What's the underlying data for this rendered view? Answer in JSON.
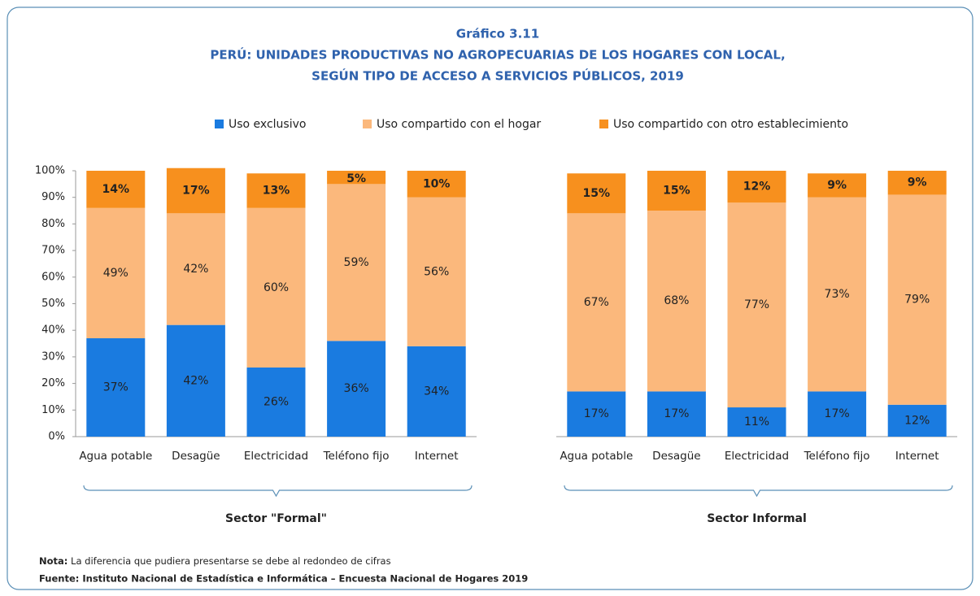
{
  "chart_data": {
    "type": "bar",
    "stacked": true,
    "kicker": "Gráfico 3.11",
    "title_lines": [
      "PERÚ: UNIDADES PRODUCTIVAS NO AGROPECUARIAS DE LOS HOGARES CON LOCAL,",
      "SEGÚN TIPO DE ACCESO A SERVICIOS PÚBLICOS, 2019"
    ],
    "categories": [
      "Agua potable",
      "Desagüe",
      "Electricidad",
      "Teléfono fijo",
      "Internet",
      "Agua potable",
      "Desagüe",
      "Electricidad",
      "Teléfono fijo",
      "Internet"
    ],
    "groups": [
      {
        "label": "Sector \"Formal\"",
        "size": 5
      },
      {
        "label": "Sector  Informal",
        "size": 5
      }
    ],
    "series": [
      {
        "name": "Uso exclusivo",
        "color": "#1a7be0",
        "label_color": "#ffffff",
        "label_bold": false,
        "values": [
          37,
          42,
          26,
          36,
          34,
          17,
          17,
          11,
          17,
          12
        ],
        "value_labels": [
          "37%",
          "42%",
          "26%",
          "36%",
          "34%",
          "17%",
          "17%",
          "11%",
          "17%",
          "12%"
        ]
      },
      {
        "name": "Uso compartido con el hogar",
        "color": "#fbb87c",
        "label_color": "#222222",
        "label_bold": false,
        "values": [
          49,
          42,
          60,
          59,
          56,
          67,
          68,
          77,
          73,
          79
        ],
        "value_labels": [
          "49%",
          "42%",
          "60%",
          "59%",
          "56%",
          "67%",
          "68%",
          "77%",
          "73%",
          "79%"
        ]
      },
      {
        "name": "Uso compartido con otro establecimiento",
        "color": "#f7901e",
        "label_color": "#111111",
        "label_bold": true,
        "values": [
          14,
          17,
          13,
          5,
          10,
          15,
          15,
          12,
          9,
          9
        ],
        "value_labels": [
          "14%",
          "17%",
          "13%",
          "5%",
          "10%",
          "15%",
          "15%",
          "12%",
          "9%",
          "9%"
        ]
      }
    ],
    "ylim": [
      0,
      100
    ],
    "yticks": [
      {
        "value": 0,
        "label": "0%"
      },
      {
        "value": 10,
        "label": "10%"
      },
      {
        "value": 20,
        "label": "20%"
      },
      {
        "value": 30,
        "label": "30%"
      },
      {
        "value": 40,
        "label": "40%"
      },
      {
        "value": 50,
        "label": "50%"
      },
      {
        "value": 60,
        "label": "60%"
      },
      {
        "value": 70,
        "label": "70%"
      },
      {
        "value": 80,
        "label": "80%"
      },
      {
        "value": 90,
        "label": "90%"
      },
      {
        "value": 100,
        "label": "100%"
      }
    ],
    "note": {
      "label": "Nota:",
      "text": " La diferencia que pudiera presentarse  se debe al redondeo de cifras"
    },
    "source": "Fuente: Instituto Nacional de Estadística e Informática – Encuesta Nacional de Hogares 2019"
  }
}
